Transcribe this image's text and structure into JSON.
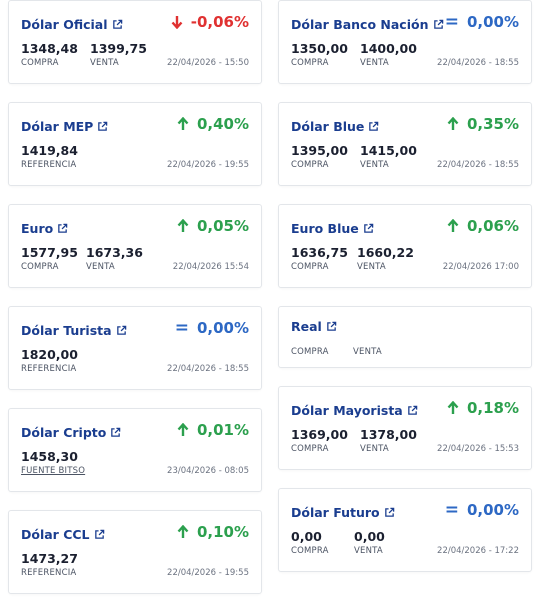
{
  "cards": {
    "oficial": {
      "title": "Dólar Oficial",
      "variation": "-0,06%",
      "trend": "down",
      "v1": "1348,48",
      "l1": "COMPRA",
      "v2": "1399,75",
      "l2": "VENTA",
      "date": "22/04/2026 - 15:50"
    },
    "mep": {
      "title": "Dólar MEP",
      "variation": "0,40%",
      "trend": "up",
      "v1": "1419,84",
      "l1": "REFERENCIA",
      "date": "22/04/2026 - 19:55"
    },
    "euro": {
      "title": "Euro",
      "variation": "0,05%",
      "trend": "up",
      "v1": "1577,95",
      "l1": "COMPRA",
      "v2": "1673,36",
      "l2": "VENTA",
      "date": "22/04/2026 15:54"
    },
    "turista": {
      "title": "Dólar Turista",
      "variation": "0,00%",
      "trend": "equal",
      "v1": "1820,00",
      "l1": "REFERENCIA",
      "date": "22/04/2026 - 18:55"
    },
    "cripto": {
      "title": "Dólar Cripto",
      "variation": "0,01%",
      "trend": "up",
      "v1": "1458,30",
      "l1": "FUENTE BITSO",
      "date": "23/04/2026 - 08:05"
    },
    "ccl": {
      "title": "Dólar CCL",
      "variation": "0,10%",
      "trend": "up",
      "v1": "1473,27",
      "l1": "REFERENCIA",
      "date": "22/04/2026 - 19:55"
    },
    "nacion": {
      "title": "Dólar Banco Nación",
      "variation": "0,00%",
      "trend": "equal",
      "v1": "1350,00",
      "l1": "COMPRA",
      "v2": "1400,00",
      "l2": "VENTA",
      "date": "22/04/2026 - 18:55"
    },
    "blue": {
      "title": "Dólar Blue",
      "variation": "0,35%",
      "trend": "up",
      "v1": "1395,00",
      "l1": "COMPRA",
      "v2": "1415,00",
      "l2": "VENTA",
      "date": "22/04/2026 - 18:55"
    },
    "euroblue": {
      "title": "Euro Blue",
      "variation": "0,06%",
      "trend": "up",
      "v1": "1636,75",
      "l1": "COMPRA",
      "v2": "1660,22",
      "l2": "VENTA",
      "date": "22/04/2026 17:00"
    },
    "real": {
      "title": "Real",
      "l1": "COMPRA",
      "l2": "VENTA"
    },
    "mayorista": {
      "title": "Dólar Mayorista",
      "variation": "0,18%",
      "trend": "up",
      "v1": "1369,00",
      "l1": "COMPRA",
      "v2": "1378,00",
      "l2": "VENTA",
      "date": "22/04/2026 - 15:53"
    },
    "futuro": {
      "title": "Dólar Futuro",
      "variation": "0,00%",
      "trend": "equal",
      "v1": "0,00",
      "l1": "COMPRA",
      "v2": "0,00",
      "l2": "VENTA",
      "date": "22/04/2026 - 17:22"
    }
  },
  "icons": {
    "external": "external-link-icon",
    "up": "arrow-up-icon",
    "down": "arrow-down-icon",
    "equal": "equal-icon"
  },
  "colors": {
    "title": "#1a3d8f",
    "up": "#2ca04e",
    "down": "#e03131",
    "equal": "#2d68c4"
  }
}
